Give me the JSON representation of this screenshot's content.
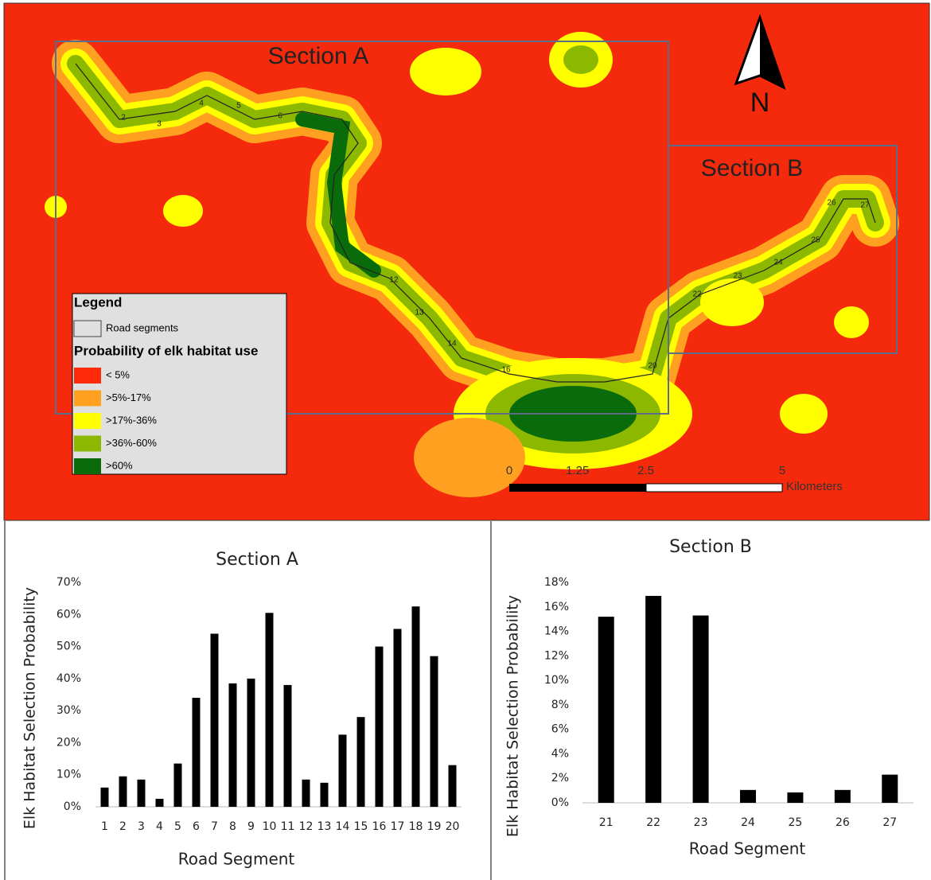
{
  "map": {
    "section_a": "Section A",
    "section_b": "Section B",
    "north": "N",
    "segment_labels": [
      "2",
      "3",
      "4",
      "5",
      "6",
      "12",
      "13",
      "14",
      "16",
      "20",
      "22",
      "23",
      "24",
      "25",
      "26",
      "27"
    ],
    "legend": {
      "title": "Legend",
      "road": "Road segments",
      "subtitle": "Probability of elk habitat use",
      "classes": [
        {
          "label": "< 5%",
          "color": "#ff2a0a"
        },
        {
          "label": ">5%-17%",
          "color": "#ffa020"
        },
        {
          "label": ">17%-36%",
          "color": "#ffff00"
        },
        {
          "label": ">36%-60%",
          "color": "#8cb800"
        },
        {
          "label": ">60%",
          "color": "#0a6b0a"
        }
      ]
    },
    "scale": {
      "ticks": [
        0,
        1.25,
        2.5,
        5
      ],
      "unit": "Kilometers"
    }
  },
  "chart_data": [
    {
      "type": "bar",
      "title": "Section A",
      "x_label": "Road Segment",
      "y_label": "Elk Habitat Selection Probability",
      "color": "#000000",
      "categories": [
        "1",
        "2",
        "3",
        "4",
        "5",
        "6",
        "7",
        "8",
        "9",
        "10",
        "11",
        "12",
        "13",
        "14",
        "15",
        "16",
        "17",
        "18",
        "19",
        "20"
      ],
      "values": [
        6,
        9.5,
        8.5,
        2.5,
        13.5,
        34,
        54,
        38.5,
        40,
        60.5,
        38,
        8.5,
        7.5,
        22.5,
        28,
        50,
        55.5,
        62.5,
        47,
        13
      ],
      "ylim": [
        0,
        70
      ],
      "yticks": [
        {
          "value": 0,
          "label": "0%"
        },
        {
          "value": 10,
          "label": "10%"
        },
        {
          "value": 20,
          "label": "20%"
        },
        {
          "value": 30,
          "label": "30%"
        },
        {
          "value": 40,
          "label": "40%"
        },
        {
          "value": 50,
          "label": "50%"
        },
        {
          "value": 60,
          "label": "60%"
        },
        {
          "value": 70,
          "label": "70%"
        }
      ]
    },
    {
      "type": "bar",
      "title": "Section B",
      "x_label": "Road Segment",
      "y_label": "Elk Habitat Selection Probability",
      "color": "#000000",
      "categories": [
        "21",
        "22",
        "23",
        "24",
        "25",
        "26",
        "27"
      ],
      "values": [
        15.2,
        16.9,
        15.3,
        1.05,
        0.85,
        1.05,
        2.3
      ],
      "ylim": [
        0,
        18
      ],
      "yticks": [
        {
          "value": 0,
          "label": "0%"
        },
        {
          "value": 2,
          "label": "2%"
        },
        {
          "value": 4,
          "label": "4%"
        },
        {
          "value": 6,
          "label": "6%"
        },
        {
          "value": 8,
          "label": "8%"
        },
        {
          "value": 10,
          "label": "10%"
        },
        {
          "value": 12,
          "label": "12%"
        },
        {
          "value": 14,
          "label": "14%"
        },
        {
          "value": 16,
          "label": "16%"
        },
        {
          "value": 18,
          "label": "18%"
        }
      ]
    }
  ]
}
